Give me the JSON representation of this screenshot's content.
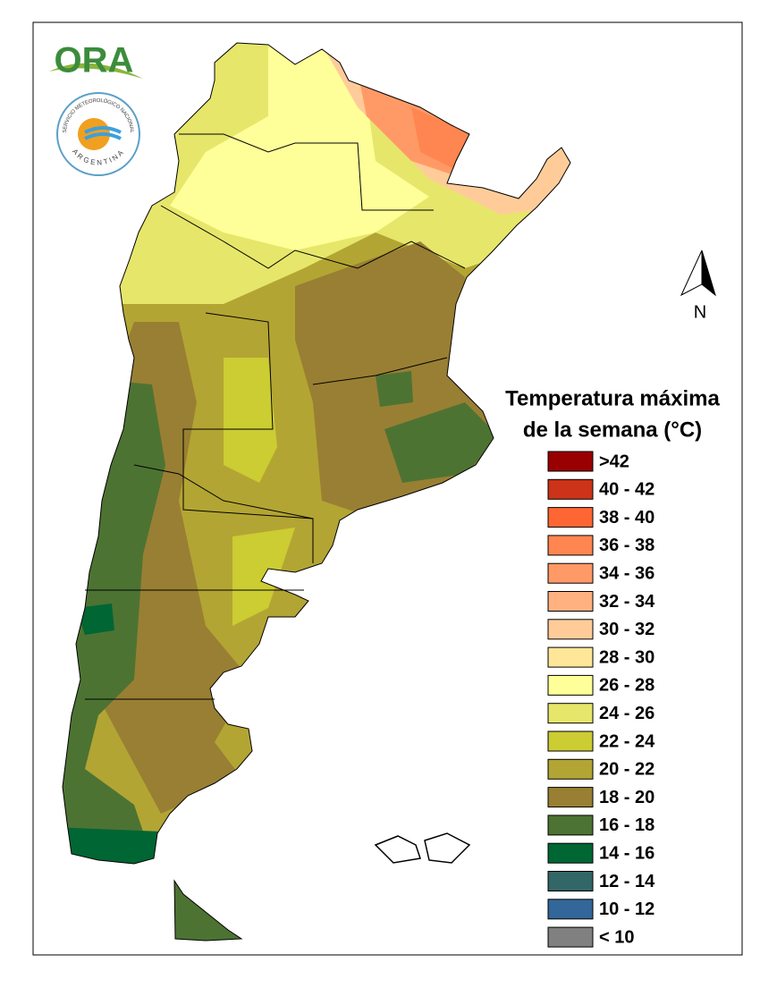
{
  "logo": {
    "name": "ORA",
    "institution": "SERVICIO METEOROLÓGICO NACIONAL",
    "country": "ARGENTINA"
  },
  "north_label": "N",
  "legend": {
    "title": [
      "Temperatura máxima",
      "de la semana (°C)"
    ],
    "items": [
      {
        "label": ">42",
        "color": "#990000"
      },
      {
        "label": "40 - 42",
        "color": "#cc3319"
      },
      {
        "label": "38 - 40",
        "color": "#ff6633"
      },
      {
        "label": "36 - 38",
        "color": "#ff8650"
      },
      {
        "label": "34 - 36",
        "color": "#ff9a66"
      },
      {
        "label": "32 - 34",
        "color": "#ffb27f"
      },
      {
        "label": "30 - 32",
        "color": "#ffcc99"
      },
      {
        "label": "28 - 30",
        "color": "#ffe699"
      },
      {
        "label": "26 - 28",
        "color": "#ffff99"
      },
      {
        "label": "24 - 26",
        "color": "#e6e66b"
      },
      {
        "label": "22 - 24",
        "color": "#cccc33"
      },
      {
        "label": "20 - 22",
        "color": "#b3a533"
      },
      {
        "label": "18 - 20",
        "color": "#997f33"
      },
      {
        "label": "16 - 18",
        "color": "#4d7333"
      },
      {
        "label": "14 - 16",
        "color": "#006633"
      },
      {
        "label": "12 - 14",
        "color": "#336666"
      },
      {
        "label": "10 - 12",
        "color": "#336699"
      },
      {
        "label": "< 10",
        "color": "#808080"
      }
    ]
  }
}
